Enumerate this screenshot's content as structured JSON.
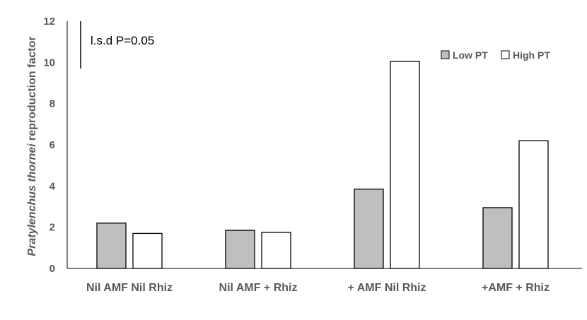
{
  "chart_data": {
    "type": "bar",
    "categories": [
      "Nil AMF Nil Rhiz",
      "Nil AMF + Rhiz",
      "+ AMF Nil Rhiz",
      "+AMF + Rhiz"
    ],
    "series": [
      {
        "name": "Low PT",
        "values": [
          2.2,
          1.85,
          3.85,
          2.95
        ],
        "fill": "#bfbfbf"
      },
      {
        "name": "High PT",
        "values": [
          1.7,
          1.75,
          10.05,
          6.2
        ],
        "fill": "#ffffff"
      }
    ],
    "ylabel_italic": "Pratylenchus thornei",
    "ylabel_rest": " reproduction factor",
    "ylim": [
      0,
      12
    ],
    "yticks": [
      "0",
      "2",
      "4",
      "6",
      "8",
      "10",
      "12"
    ],
    "grid": false,
    "legend_position": "top-right",
    "annotation": {
      "label": "l.s.d P=0.05",
      "value": 2.3
    }
  }
}
